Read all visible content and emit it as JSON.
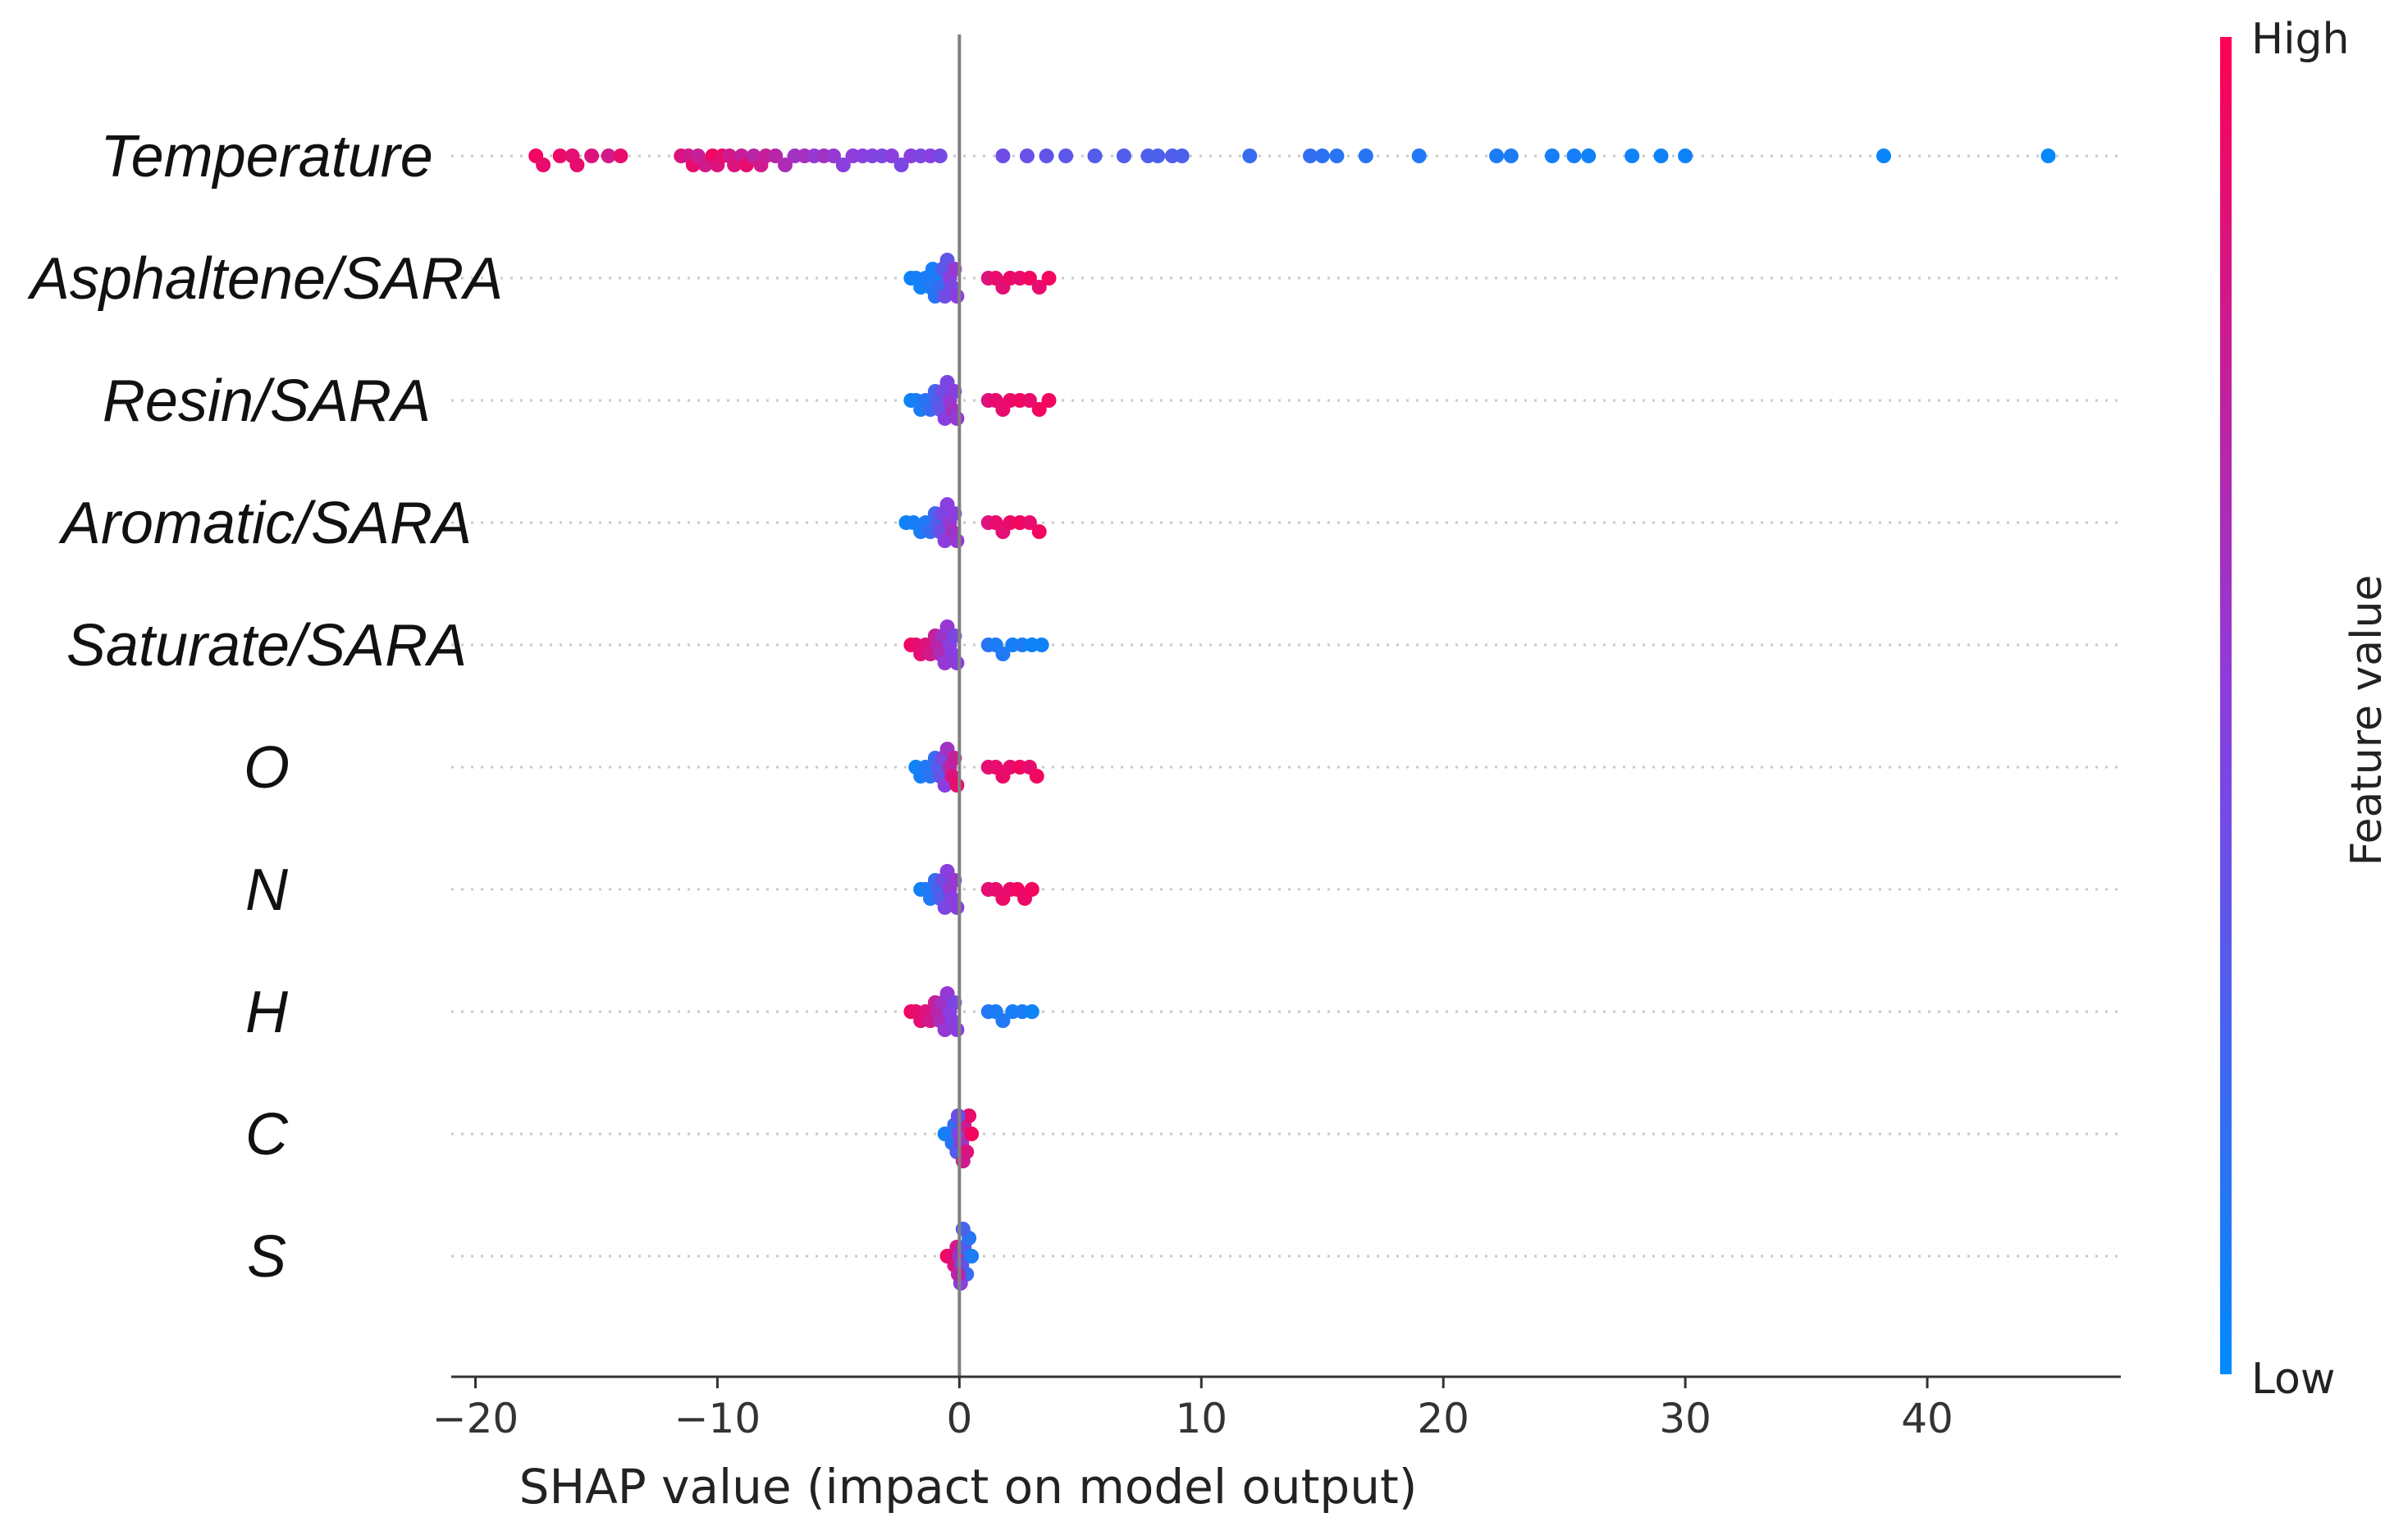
{
  "chart_data": {
    "type": "scatter",
    "subtype": "shap-beeswarm",
    "xlabel": "SHAP value (impact on model output)",
    "xlim": [
      -21,
      48
    ],
    "xticks": [
      -20,
      -10,
      0,
      10,
      20,
      30,
      40
    ],
    "xtick_labels": [
      "−20",
      "−10",
      "0",
      "10",
      "20",
      "30",
      "40"
    ],
    "colorbar": {
      "title": "Feature value",
      "high_label": "High",
      "low_label": "Low",
      "high_color": "#ff0052",
      "low_color": "#008bfb",
      "mid_color": "#8a3ee0"
    },
    "features": [
      {
        "name": "Temperature",
        "points": [
          [
            -17.5,
            0.95
          ],
          [
            -17.2,
            0.9
          ],
          [
            -16.5,
            0.92
          ],
          [
            -16.0,
            0.88
          ],
          [
            -15.8,
            0.9
          ],
          [
            -15.2,
            0.85
          ],
          [
            -14.5,
            0.8
          ],
          [
            -14.0,
            0.9
          ],
          [
            -11.5,
            0.85
          ],
          [
            -11.2,
            0.8
          ],
          [
            -11.0,
            0.9
          ],
          [
            -10.8,
            0.75
          ],
          [
            -10.5,
            0.8
          ],
          [
            -10.2,
            0.95
          ],
          [
            -10.0,
            0.85
          ],
          [
            -9.8,
            0.9
          ],
          [
            -9.5,
            0.8
          ],
          [
            -9.3,
            0.85
          ],
          [
            -9.0,
            0.75
          ],
          [
            -8.8,
            0.9
          ],
          [
            -8.5,
            0.7
          ],
          [
            -8.2,
            0.8
          ],
          [
            -8.0,
            0.75
          ],
          [
            -7.6,
            0.7
          ],
          [
            -7.2,
            0.65
          ],
          [
            -6.8,
            0.6
          ],
          [
            -6.4,
            0.62
          ],
          [
            -6.0,
            0.55
          ],
          [
            -5.6,
            0.6
          ],
          [
            -5.2,
            0.55
          ],
          [
            -4.8,
            0.5
          ],
          [
            -4.4,
            0.52
          ],
          [
            -4.0,
            0.5
          ],
          [
            -3.6,
            0.48
          ],
          [
            -3.2,
            0.45
          ],
          [
            -2.8,
            0.5
          ],
          [
            -2.4,
            0.45
          ],
          [
            -2.0,
            0.5
          ],
          [
            -1.6,
            0.45
          ],
          [
            -1.2,
            0.5
          ],
          [
            -0.8,
            0.42
          ],
          [
            1.8,
            0.4
          ],
          [
            2.8,
            0.38
          ],
          [
            3.6,
            0.36
          ],
          [
            4.4,
            0.33
          ],
          [
            5.6,
            0.3
          ],
          [
            6.8,
            0.3
          ],
          [
            7.8,
            0.28
          ],
          [
            8.2,
            0.28
          ],
          [
            8.8,
            0.3
          ],
          [
            9.2,
            0.28
          ],
          [
            12.0,
            0.2
          ],
          [
            14.5,
            0.18
          ],
          [
            15.0,
            0.16
          ],
          [
            15.6,
            0.15
          ],
          [
            16.8,
            0.14
          ],
          [
            19.0,
            0.12
          ],
          [
            22.2,
            0.1
          ],
          [
            22.8,
            0.1
          ],
          [
            24.5,
            0.08
          ],
          [
            25.4,
            0.08
          ],
          [
            26.0,
            0.06
          ],
          [
            27.8,
            0.06
          ],
          [
            29.0,
            0.05
          ],
          [
            30.0,
            0.05
          ],
          [
            38.2,
            0.03
          ],
          [
            45.0,
            0.02
          ]
        ]
      },
      {
        "name": "Asphaltene/SARA",
        "points": [
          [
            -2.0,
            0.05
          ],
          [
            -1.8,
            0.08
          ],
          [
            -1.6,
            0.06
          ],
          [
            -1.4,
            0.1
          ],
          [
            -1.2,
            0.12
          ],
          [
            -1.1,
            0.08
          ],
          [
            -1.0,
            0.15
          ],
          [
            -0.9,
            0.1
          ],
          [
            -0.8,
            0.2
          ],
          [
            -0.7,
            0.3
          ],
          [
            -0.6,
            0.4
          ],
          [
            -0.5,
            0.35
          ],
          [
            -0.4,
            0.5
          ],
          [
            -0.3,
            0.45
          ],
          [
            -0.2,
            0.55
          ],
          [
            -0.1,
            0.5
          ],
          [
            1.2,
            0.85
          ],
          [
            1.5,
            0.9
          ],
          [
            1.8,
            0.88
          ],
          [
            2.1,
            0.92
          ],
          [
            2.5,
            0.9
          ],
          [
            2.9,
            0.95
          ],
          [
            3.3,
            0.9
          ],
          [
            3.7,
            0.95
          ]
        ]
      },
      {
        "name": "Resin/SARA",
        "points": [
          [
            -2.0,
            0.05
          ],
          [
            -1.8,
            0.08
          ],
          [
            -1.6,
            0.1
          ],
          [
            -1.4,
            0.15
          ],
          [
            -1.2,
            0.2
          ],
          [
            -1.0,
            0.25
          ],
          [
            -0.9,
            0.3
          ],
          [
            -0.8,
            0.35
          ],
          [
            -0.7,
            0.4
          ],
          [
            -0.6,
            0.5
          ],
          [
            -0.5,
            0.45
          ],
          [
            -0.4,
            0.55
          ],
          [
            -0.3,
            0.6
          ],
          [
            -0.2,
            0.5
          ],
          [
            -0.1,
            0.55
          ],
          [
            1.2,
            0.85
          ],
          [
            1.5,
            0.9
          ],
          [
            1.8,
            0.9
          ],
          [
            2.1,
            0.92
          ],
          [
            2.5,
            0.95
          ],
          [
            2.9,
            0.9
          ],
          [
            3.3,
            0.95
          ],
          [
            3.7,
            0.95
          ]
        ]
      },
      {
        "name": "Aromatic/SARA",
        "points": [
          [
            -2.2,
            0.05
          ],
          [
            -1.9,
            0.08
          ],
          [
            -1.6,
            0.1
          ],
          [
            -1.4,
            0.12
          ],
          [
            -1.2,
            0.2
          ],
          [
            -1.0,
            0.25
          ],
          [
            -0.9,
            0.3
          ],
          [
            -0.8,
            0.4
          ],
          [
            -0.7,
            0.45
          ],
          [
            -0.6,
            0.5
          ],
          [
            -0.5,
            0.5
          ],
          [
            -0.4,
            0.55
          ],
          [
            -0.3,
            0.6
          ],
          [
            -0.2,
            0.5
          ],
          [
            -0.1,
            0.55
          ],
          [
            1.2,
            0.85
          ],
          [
            1.5,
            0.9
          ],
          [
            1.8,
            0.88
          ],
          [
            2.1,
            0.92
          ],
          [
            2.5,
            0.95
          ],
          [
            2.9,
            0.9
          ],
          [
            3.3,
            0.95
          ]
        ]
      },
      {
        "name": "Saturate/SARA",
        "points": [
          [
            -2.0,
            0.95
          ],
          [
            -1.8,
            0.9
          ],
          [
            -1.6,
            0.88
          ],
          [
            -1.4,
            0.85
          ],
          [
            -1.2,
            0.8
          ],
          [
            -1.0,
            0.75
          ],
          [
            -0.9,
            0.7
          ],
          [
            -0.8,
            0.65
          ],
          [
            -0.7,
            0.6
          ],
          [
            -0.6,
            0.55
          ],
          [
            -0.5,
            0.55
          ],
          [
            -0.4,
            0.5
          ],
          [
            -0.3,
            0.5
          ],
          [
            -0.2,
            0.45
          ],
          [
            -0.1,
            0.5
          ],
          [
            1.2,
            0.15
          ],
          [
            1.5,
            0.1
          ],
          [
            1.8,
            0.12
          ],
          [
            2.2,
            0.08
          ],
          [
            2.6,
            0.1
          ],
          [
            3.0,
            0.05
          ],
          [
            3.4,
            0.05
          ]
        ]
      },
      {
        "name": "O",
        "points": [
          [
            -1.8,
            0.05
          ],
          [
            -1.6,
            0.08
          ],
          [
            -1.4,
            0.12
          ],
          [
            -1.2,
            0.15
          ],
          [
            -1.0,
            0.2
          ],
          [
            -0.9,
            0.3
          ],
          [
            -0.8,
            0.35
          ],
          [
            -0.7,
            0.45
          ],
          [
            -0.6,
            0.5
          ],
          [
            -0.5,
            0.6
          ],
          [
            -0.4,
            0.7
          ],
          [
            -0.3,
            0.85
          ],
          [
            -0.2,
            0.75
          ],
          [
            -0.1,
            0.9
          ],
          [
            1.2,
            0.88
          ],
          [
            1.5,
            0.9
          ],
          [
            1.8,
            0.92
          ],
          [
            2.1,
            0.9
          ],
          [
            2.5,
            0.95
          ],
          [
            2.9,
            0.9
          ],
          [
            3.2,
            0.95
          ]
        ]
      },
      {
        "name": "N",
        "points": [
          [
            -1.6,
            0.05
          ],
          [
            -1.4,
            0.1
          ],
          [
            -1.2,
            0.12
          ],
          [
            -1.0,
            0.2
          ],
          [
            -0.9,
            0.25
          ],
          [
            -0.8,
            0.3
          ],
          [
            -0.7,
            0.4
          ],
          [
            -0.6,
            0.45
          ],
          [
            -0.5,
            0.5
          ],
          [
            -0.4,
            0.55
          ],
          [
            -0.3,
            0.5
          ],
          [
            -0.2,
            0.55
          ],
          [
            -0.1,
            0.5
          ],
          [
            1.2,
            0.88
          ],
          [
            1.5,
            0.9
          ],
          [
            1.8,
            0.92
          ],
          [
            2.1,
            0.9
          ],
          [
            2.4,
            0.95
          ],
          [
            2.7,
            0.92
          ],
          [
            3.0,
            0.95
          ]
        ]
      },
      {
        "name": "H",
        "points": [
          [
            -2.0,
            0.95
          ],
          [
            -1.8,
            0.9
          ],
          [
            -1.6,
            0.88
          ],
          [
            -1.4,
            0.85
          ],
          [
            -1.2,
            0.8
          ],
          [
            -1.0,
            0.75
          ],
          [
            -0.9,
            0.7
          ],
          [
            -0.8,
            0.65
          ],
          [
            -0.7,
            0.6
          ],
          [
            -0.6,
            0.55
          ],
          [
            -0.5,
            0.55
          ],
          [
            -0.4,
            0.5
          ],
          [
            -0.3,
            0.5
          ],
          [
            -0.2,
            0.45
          ],
          [
            -0.1,
            0.5
          ],
          [
            1.2,
            0.12
          ],
          [
            1.5,
            0.1
          ],
          [
            1.8,
            0.12
          ],
          [
            2.2,
            0.08
          ],
          [
            2.6,
            0.1
          ],
          [
            3.0,
            0.05
          ]
        ]
      },
      {
        "name": "C",
        "points": [
          [
            -0.6,
            0.05
          ],
          [
            -0.45,
            0.1
          ],
          [
            -0.3,
            0.15
          ],
          [
            -0.2,
            0.2
          ],
          [
            -0.1,
            0.3
          ],
          [
            0.0,
            0.5
          ],
          [
            0.1,
            0.6
          ],
          [
            0.2,
            0.75
          ],
          [
            0.3,
            0.85
          ],
          [
            0.4,
            0.9
          ],
          [
            0.5,
            0.95
          ],
          [
            0.15,
            0.8
          ],
          [
            -0.05,
            0.4
          ]
        ]
      },
      {
        "name": "S",
        "points": [
          [
            -0.5,
            0.95
          ],
          [
            -0.35,
            0.9
          ],
          [
            -0.2,
            0.85
          ],
          [
            -0.1,
            0.8
          ],
          [
            0.0,
            0.6
          ],
          [
            0.1,
            0.4
          ],
          [
            0.2,
            0.3
          ],
          [
            0.3,
            0.2
          ],
          [
            0.4,
            0.15
          ],
          [
            0.5,
            0.1
          ],
          [
            0.05,
            0.5
          ],
          [
            -0.05,
            0.7
          ],
          [
            0.15,
            0.25
          ]
        ]
      }
    ]
  }
}
